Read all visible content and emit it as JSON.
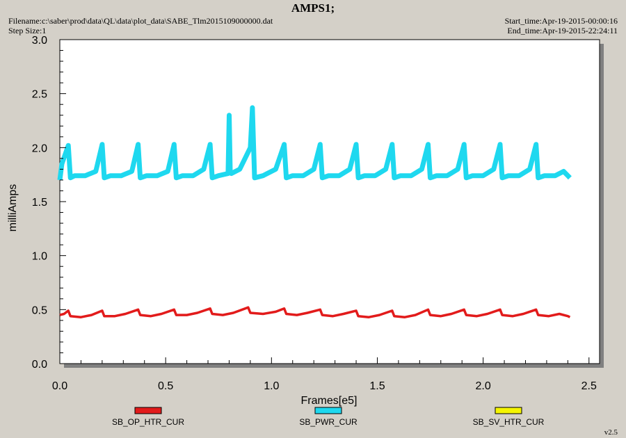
{
  "header": {
    "title": "AMPS1;",
    "filename": "Filename:c:\\saber\\prod\\data\\QL\\data\\plot_data\\SABE_Tlm2015109000000.dat",
    "step_size": "Step Size:1",
    "start_time": "Start_time:Apr-19-2015-00:00:16",
    "end_time": "End_time:Apr-19-2015-22:24:11",
    "version": "v2.5"
  },
  "chart_data": {
    "type": "line",
    "xlabel": "Frames[e5]",
    "ylabel": "milliAmps",
    "xlim": [
      0.0,
      2.55
    ],
    "ylim": [
      0.0,
      3.0
    ],
    "x_ticks": [
      "0.0",
      "0.5",
      "1.0",
      "1.5",
      "2.0",
      "2.5"
    ],
    "y_ticks": [
      "0.0",
      "0.5",
      "1.0",
      "1.5",
      "2.0",
      "2.5",
      "3.0"
    ],
    "grid": false,
    "legend_position": "bottom",
    "series": [
      {
        "name": "SB_OP_HTR_CUR",
        "color": "#e21b1b",
        "x": [
          0.0,
          0.02,
          0.04,
          0.05,
          0.1,
          0.15,
          0.2,
          0.21,
          0.26,
          0.31,
          0.37,
          0.38,
          0.43,
          0.48,
          0.54,
          0.55,
          0.6,
          0.65,
          0.71,
          0.72,
          0.77,
          0.82,
          0.89,
          0.9,
          0.96,
          1.02,
          1.06,
          1.07,
          1.12,
          1.17,
          1.23,
          1.24,
          1.29,
          1.34,
          1.4,
          1.41,
          1.46,
          1.51,
          1.57,
          1.58,
          1.63,
          1.68,
          1.74,
          1.75,
          1.8,
          1.85,
          1.91,
          1.92,
          1.97,
          2.02,
          2.08,
          2.09,
          2.14,
          2.19,
          2.25,
          2.26,
          2.31,
          2.36,
          2.4,
          2.41
        ],
        "y": [
          0.45,
          0.46,
          0.49,
          0.44,
          0.43,
          0.45,
          0.49,
          0.44,
          0.44,
          0.46,
          0.5,
          0.45,
          0.44,
          0.46,
          0.5,
          0.45,
          0.45,
          0.47,
          0.51,
          0.46,
          0.45,
          0.47,
          0.52,
          0.47,
          0.46,
          0.48,
          0.51,
          0.46,
          0.45,
          0.47,
          0.5,
          0.45,
          0.44,
          0.46,
          0.49,
          0.44,
          0.43,
          0.45,
          0.49,
          0.44,
          0.43,
          0.45,
          0.5,
          0.45,
          0.44,
          0.46,
          0.5,
          0.45,
          0.44,
          0.46,
          0.5,
          0.45,
          0.44,
          0.46,
          0.5,
          0.45,
          0.44,
          0.46,
          0.44,
          0.43
        ]
      },
      {
        "name": "SB_PWR_CUR",
        "color": "#1ed8ef",
        "x": [
          0.0,
          0.01,
          0.04,
          0.05,
          0.07,
          0.12,
          0.17,
          0.2,
          0.21,
          0.24,
          0.29,
          0.34,
          0.37,
          0.38,
          0.41,
          0.46,
          0.51,
          0.54,
          0.55,
          0.58,
          0.63,
          0.68,
          0.71,
          0.72,
          0.75,
          0.795,
          0.8,
          0.805,
          0.81,
          0.85,
          0.9,
          0.91,
          0.915,
          0.92,
          0.96,
          1.02,
          1.06,
          1.07,
          1.1,
          1.15,
          1.2,
          1.23,
          1.24,
          1.27,
          1.32,
          1.37,
          1.4,
          1.41,
          1.44,
          1.49,
          1.54,
          1.57,
          1.58,
          1.61,
          1.66,
          1.71,
          1.74,
          1.75,
          1.78,
          1.83,
          1.88,
          1.91,
          1.92,
          1.95,
          2.0,
          2.05,
          2.08,
          2.09,
          2.12,
          2.17,
          2.22,
          2.25,
          2.26,
          2.29,
          2.34,
          2.38,
          2.4,
          2.41
        ],
        "y": [
          1.7,
          1.85,
          2.02,
          1.72,
          1.74,
          1.74,
          1.78,
          2.03,
          1.72,
          1.74,
          1.74,
          1.78,
          2.03,
          1.72,
          1.74,
          1.74,
          1.78,
          2.03,
          1.72,
          1.74,
          1.74,
          1.8,
          2.03,
          1.72,
          1.74,
          1.76,
          2.3,
          1.78,
          1.76,
          1.8,
          2.0,
          2.37,
          2.05,
          1.72,
          1.74,
          1.8,
          2.03,
          1.72,
          1.74,
          1.74,
          1.8,
          2.03,
          1.72,
          1.74,
          1.74,
          1.8,
          2.03,
          1.72,
          1.74,
          1.74,
          1.8,
          2.03,
          1.72,
          1.74,
          1.74,
          1.8,
          2.03,
          1.72,
          1.74,
          1.74,
          1.8,
          2.03,
          1.72,
          1.74,
          1.74,
          1.8,
          2.03,
          1.72,
          1.74,
          1.74,
          1.8,
          2.03,
          1.72,
          1.74,
          1.74,
          1.78,
          1.74,
          1.72
        ]
      },
      {
        "name": "SB_SV_HTR_CUR",
        "color": "#f5f500",
        "x": [],
        "y": []
      }
    ]
  }
}
